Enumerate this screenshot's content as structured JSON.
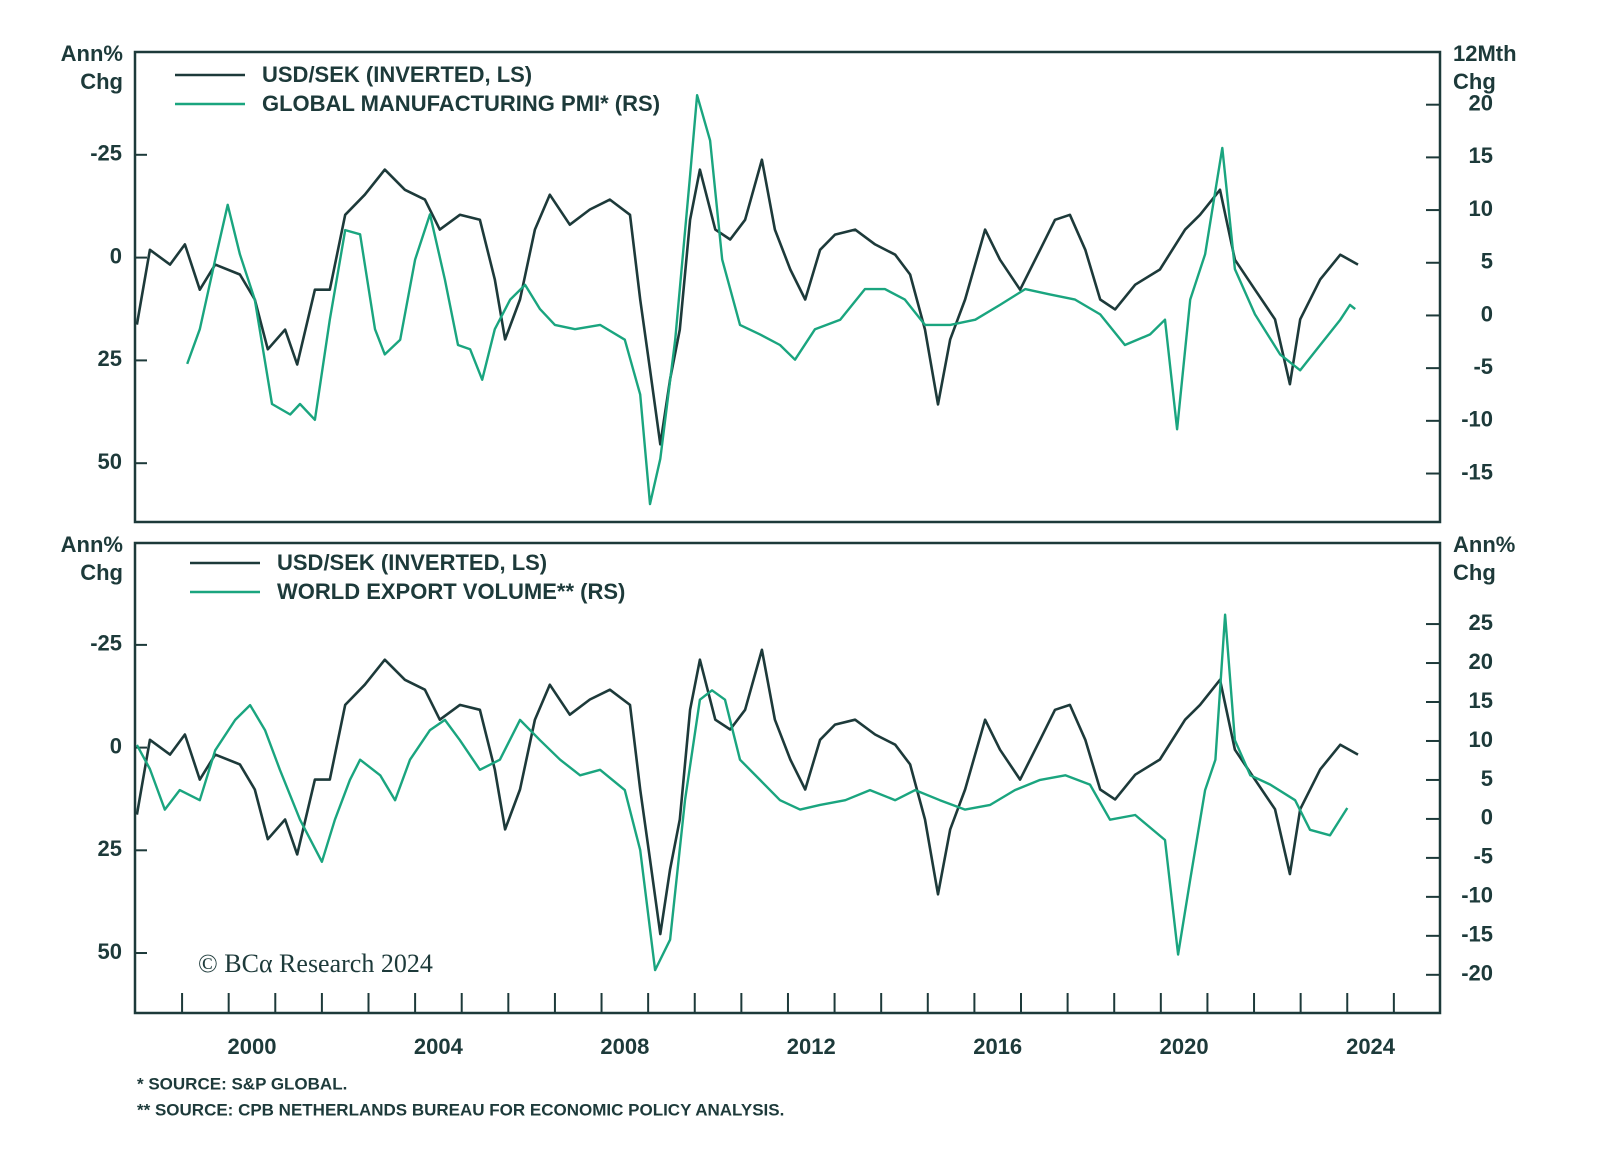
{
  "chart_data": [
    {
      "type": "line",
      "ylabel": [
        "Ann%",
        "Chg"
      ],
      "y2label": [
        "12Mth",
        "Chg"
      ],
      "xlim": [
        1997.49,
        2025.49
      ],
      "ylim": [
        64.3,
        -50
      ],
      "yticks": [
        -25,
        0,
        25,
        50
      ],
      "y2lim": [
        -19.6,
        25
      ],
      "y2ticks": [
        20,
        15,
        10,
        5,
        0,
        -5,
        -10,
        -15
      ],
      "series": [
        {
          "name": "USD/SEK (INVERTED, LS)",
          "color": "#1d3a3a",
          "x": [
            1997.53,
            1997.81,
            1998.24,
            1998.56,
            1998.88,
            1999.21,
            1999.74,
            2000.06,
            2000.34,
            2000.71,
            2000.97,
            2001.35,
            2001.67,
            2002.0,
            2002.42,
            2002.85,
            2003.28,
            2003.71,
            2004.03,
            2004.46,
            2004.89,
            2005.21,
            2005.43,
            2005.75,
            2006.07,
            2006.39,
            2006.82,
            2007.25,
            2007.68,
            2008.11,
            2008.33,
            2008.54,
            2008.76,
            2008.97,
            2009.18,
            2009.4,
            2009.61,
            2009.94,
            2010.26,
            2010.58,
            2010.94,
            2011.22,
            2011.55,
            2011.87,
            2012.19,
            2012.51,
            2012.94,
            2013.37,
            2013.8,
            2014.12,
            2014.44,
            2014.72,
            2014.98,
            2015.3,
            2015.73,
            2016.05,
            2016.48,
            2016.91,
            2017.23,
            2017.55,
            2017.88,
            2018.2,
            2018.52,
            2018.95,
            2019.48,
            2020.02,
            2020.34,
            2020.77,
            2021.09,
            2021.52,
            2021.95,
            2022.27,
            2022.49,
            2022.92,
            2023.35,
            2023.73
          ],
          "values": [
            16.3,
            -1.9,
            1.7,
            -3.2,
            7.8,
            1.7,
            4.1,
            10.2,
            22.3,
            17.5,
            26.0,
            7.8,
            7.8,
            -10.4,
            -15.3,
            -21.4,
            -16.5,
            -14.1,
            -6.8,
            -10.4,
            -9.2,
            5.3,
            19.9,
            10.2,
            -6.8,
            -15.3,
            -8.0,
            -11.7,
            -14.1,
            -10.4,
            10.2,
            27.2,
            45.4,
            29.6,
            17.5,
            -9.2,
            -21.4,
            -6.8,
            -4.4,
            -9.2,
            -23.8,
            -6.8,
            2.9,
            10.2,
            -1.9,
            -5.6,
            -6.8,
            -3.2,
            -0.7,
            4.1,
            17.5,
            35.7,
            19.9,
            10.2,
            -6.8,
            0.5,
            7.8,
            -1.9,
            -9.2,
            -10.4,
            -1.9,
            10.2,
            12.6,
            6.6,
            2.9,
            -6.8,
            -10.4,
            -16.5,
            0.5,
            7.8,
            15.0,
            30.8,
            15.0,
            5.3,
            -0.7,
            1.7
          ]
        },
        {
          "name": "GLOBAL MANUFACTURING PMI* (RS)",
          "color": "#1aa57f",
          "axis": "y2",
          "x": [
            1998.61,
            1998.88,
            1999.21,
            1999.48,
            1999.74,
            2000.06,
            2000.43,
            2000.82,
            2001.03,
            2001.35,
            2001.67,
            2002.0,
            2002.32,
            2002.64,
            2002.85,
            2003.18,
            2003.5,
            2003.82,
            2004.14,
            2004.42,
            2004.68,
            2004.94,
            2005.21,
            2005.54,
            2005.86,
            2006.18,
            2006.5,
            2006.93,
            2007.47,
            2008.0,
            2008.33,
            2008.54,
            2008.76,
            2009.08,
            2009.4,
            2009.55,
            2009.83,
            2010.09,
            2010.47,
            2010.9,
            2011.33,
            2011.65,
            2012.08,
            2012.62,
            2013.15,
            2013.58,
            2014.01,
            2014.44,
            2014.98,
            2015.52,
            2016.05,
            2016.59,
            2017.12,
            2017.66,
            2018.2,
            2018.73,
            2019.27,
            2019.59,
            2019.85,
            2020.13,
            2020.45,
            2020.82,
            2021.09,
            2021.52,
            2022.06,
            2022.49,
            2022.92,
            2023.35,
            2023.56,
            2023.67
          ],
          "values": [
            -4.6,
            -1.3,
            5.3,
            10.5,
            5.8,
            1.5,
            -8.4,
            -9.4,
            -8.4,
            -9.9,
            -0.4,
            8.1,
            7.7,
            -1.3,
            -3.7,
            -2.3,
            5.3,
            9.6,
            3.4,
            -2.8,
            -3.2,
            -6.1,
            -1.3,
            1.5,
            2.9,
            0.6,
            -0.9,
            -1.3,
            -0.9,
            -2.3,
            -7.5,
            -17.9,
            -13.6,
            -2.3,
            13.3,
            20.9,
            16.6,
            5.3,
            -0.9,
            -1.8,
            -2.8,
            -4.2,
            -1.3,
            -0.4,
            2.5,
            2.5,
            1.5,
            -0.9,
            -0.9,
            -0.4,
            1.0,
            2.5,
            2.0,
            1.5,
            0.1,
            -2.8,
            -1.8,
            -0.4,
            -10.8,
            1.5,
            5.8,
            15.9,
            4.4,
            0.1,
            -3.7,
            -5.2,
            -2.8,
            -0.4,
            1.0,
            0.6
          ]
        }
      ]
    },
    {
      "type": "line",
      "ylabel": [
        "Ann%",
        "Chg"
      ],
      "y2label": [
        "Ann%",
        "Chg"
      ],
      "xlim": [
        1997.49,
        2025.49
      ],
      "xticks": [
        2000,
        2004,
        2008,
        2012,
        2016,
        2020,
        2024
      ],
      "x_minor_ticks": [
        1998.5,
        1999.5,
        2000.5,
        2001.5,
        2002.5,
        2003.5,
        2004.5,
        2005.5,
        2006.5,
        2007.5,
        2008.5,
        2009.5,
        2010.5,
        2011.5,
        2012.5,
        2013.5,
        2014.5,
        2015.5,
        2016.5,
        2017.5,
        2018.5,
        2019.5,
        2020.5,
        2021.5,
        2022.5,
        2023.5,
        2024.5
      ],
      "ylim": [
        64.6,
        -49.8
      ],
      "yticks": [
        -25,
        0,
        25,
        50
      ],
      "y2lim": [
        -24.9,
        35.4
      ],
      "y2ticks": [
        25,
        20,
        15,
        10,
        5,
        0,
        -5,
        -10,
        -15,
        -20
      ],
      "series": [
        {
          "name": "USD/SEK (INVERTED, LS)",
          "color": "#1d3a3a",
          "x": [
            1997.53,
            1997.81,
            1998.24,
            1998.56,
            1998.88,
            1999.21,
            1999.74,
            2000.06,
            2000.34,
            2000.71,
            2000.97,
            2001.35,
            2001.67,
            2002.0,
            2002.42,
            2002.85,
            2003.28,
            2003.71,
            2004.03,
            2004.46,
            2004.89,
            2005.21,
            2005.43,
            2005.75,
            2006.07,
            2006.39,
            2006.82,
            2007.25,
            2007.68,
            2008.11,
            2008.33,
            2008.54,
            2008.76,
            2008.97,
            2009.18,
            2009.4,
            2009.61,
            2009.94,
            2010.26,
            2010.58,
            2010.94,
            2011.22,
            2011.55,
            2011.87,
            2012.19,
            2012.51,
            2012.94,
            2013.37,
            2013.8,
            2014.12,
            2014.44,
            2014.72,
            2014.98,
            2015.3,
            2015.73,
            2016.05,
            2016.48,
            2016.91,
            2017.23,
            2017.55,
            2017.88,
            2018.2,
            2018.52,
            2018.95,
            2019.48,
            2020.02,
            2020.34,
            2020.77,
            2021.09,
            2021.52,
            2021.95,
            2022.27,
            2022.49,
            2022.92,
            2023.35,
            2023.73
          ],
          "values": [
            16.3,
            -1.9,
            1.7,
            -3.2,
            7.8,
            1.7,
            4.1,
            10.2,
            22.3,
            17.5,
            26.0,
            7.8,
            7.8,
            -10.4,
            -15.3,
            -21.4,
            -16.5,
            -14.1,
            -6.8,
            -10.4,
            -9.2,
            5.3,
            19.9,
            10.2,
            -6.8,
            -15.3,
            -8.0,
            -11.7,
            -14.1,
            -10.4,
            10.2,
            27.2,
            45.4,
            29.6,
            17.5,
            -9.2,
            -21.4,
            -6.8,
            -4.4,
            -9.2,
            -23.8,
            -6.8,
            2.9,
            10.2,
            -1.9,
            -5.6,
            -6.8,
            -3.2,
            -0.7,
            4.1,
            17.5,
            35.7,
            19.9,
            10.2,
            -6.8,
            0.5,
            7.8,
            -1.9,
            -9.2,
            -10.4,
            -1.9,
            10.2,
            12.6,
            6.6,
            2.9,
            -6.8,
            -10.4,
            -16.5,
            0.5,
            7.8,
            15.0,
            30.8,
            15.0,
            5.3,
            -0.7,
            1.7
          ]
        },
        {
          "name": "WORLD EXPORT VOLUME** (RS)",
          "color": "#1aa57f",
          "axis": "y2",
          "x": [
            1997.53,
            1997.81,
            1998.13,
            1998.45,
            1998.88,
            1999.21,
            1999.64,
            1999.96,
            2000.28,
            2000.6,
            2001.03,
            2001.5,
            2001.78,
            2002.1,
            2002.32,
            2002.75,
            2003.07,
            2003.39,
            2003.82,
            2004.14,
            2004.46,
            2004.89,
            2005.32,
            2005.75,
            2006.18,
            2006.61,
            2007.04,
            2007.47,
            2008.0,
            2008.33,
            2008.65,
            2008.97,
            2009.29,
            2009.61,
            2009.87,
            2010.15,
            2010.47,
            2010.9,
            2011.33,
            2011.76,
            2012.19,
            2012.73,
            2013.26,
            2013.8,
            2014.23,
            2014.76,
            2015.3,
            2015.84,
            2016.37,
            2016.91,
            2017.45,
            2017.98,
            2018.41,
            2018.95,
            2019.59,
            2019.87,
            2020.13,
            2020.45,
            2020.67,
            2020.88,
            2021.09,
            2021.42,
            2021.85,
            2022.38,
            2022.7,
            2023.13,
            2023.5
          ],
          "values": [
            9.5,
            6.4,
            1.2,
            3.7,
            2.4,
            8.8,
            12.7,
            14.6,
            11.4,
            6.3,
            -0.1,
            -5.5,
            -0.1,
            5.0,
            7.6,
            5.6,
            2.4,
            7.6,
            11.4,
            12.7,
            10.1,
            6.3,
            7.6,
            12.7,
            10.1,
            7.6,
            5.6,
            6.3,
            3.7,
            -4.0,
            -19.4,
            -15.5,
            2.4,
            15.3,
            16.5,
            15.3,
            7.6,
            5.0,
            2.4,
            1.2,
            1.8,
            2.4,
            3.7,
            2.4,
            3.7,
            2.4,
            1.2,
            1.8,
            3.7,
            5.0,
            5.6,
            4.4,
            -0.1,
            0.5,
            -2.7,
            -17.4,
            -7.8,
            3.7,
            7.6,
            26.2,
            10.1,
            5.6,
            4.4,
            2.4,
            -1.4,
            -2.1,
            1.4
          ]
        }
      ]
    }
  ],
  "credit": "© BCα Research 2024",
  "footnotes": [
    "* SOURCE: S&P GLOBAL.",
    "** SOURCE: CPB NETHERLANDS BUREAU FOR ECONOMIC POLICY ANALYSIS."
  ]
}
